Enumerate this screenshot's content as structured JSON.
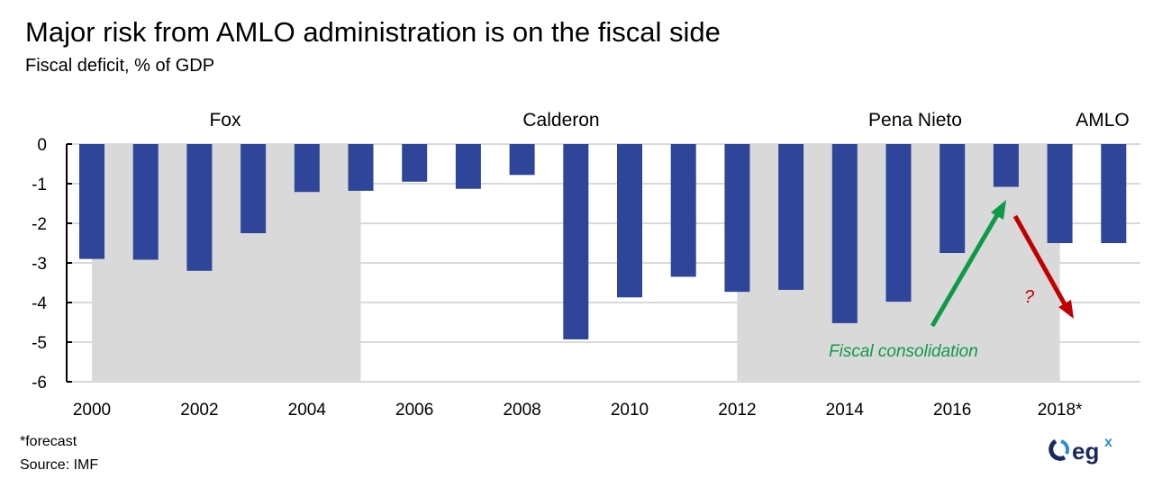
{
  "chart_data": {
    "type": "bar",
    "title": "Major risk from AMLO administration is on the fiscal side",
    "subtitle": "Fiscal deficit, % of GDP",
    "categories": [
      "2000",
      "2001",
      "2002",
      "2003",
      "2004",
      "2005",
      "2006",
      "2007",
      "2008",
      "2009",
      "2010",
      "2011",
      "2012",
      "2013",
      "2014",
      "2015",
      "2016",
      "2017",
      "2018*",
      "2019"
    ],
    "x_tick_labels": [
      "2000",
      "2002",
      "2004",
      "2006",
      "2008",
      "2010",
      "2012",
      "2014",
      "2016",
      "2018*"
    ],
    "values": [
      -2.9,
      -2.92,
      -3.2,
      -2.25,
      -1.21,
      -1.18,
      -0.95,
      -1.13,
      -0.78,
      -4.93,
      -3.87,
      -3.35,
      -3.73,
      -3.68,
      -4.52,
      -3.98,
      -2.75,
      -1.08,
      -2.5,
      -2.5
    ],
    "ylim": [
      -6,
      0
    ],
    "y_ticks": [
      "0",
      "-1",
      "-2",
      "-3",
      "-4",
      "-5",
      "-6"
    ],
    "grid": true,
    "bar_color": "#2E4599",
    "periods": [
      {
        "label": "Fox",
        "from": "2000",
        "to": "2005",
        "shaded": true
      },
      {
        "label": "Calderon",
        "from": "2006",
        "to": "2011",
        "shaded": false
      },
      {
        "label": "Pena Nieto",
        "from": "2012",
        "to": "2018*",
        "shaded": true
      },
      {
        "label": "AMLO",
        "from": "2018*",
        "to": "2019",
        "shaded": false
      }
    ],
    "annotations": [
      {
        "text": "Fiscal consolidation",
        "color": "#0E9A48"
      },
      {
        "text": "?",
        "color": "#C00000"
      }
    ]
  },
  "footnote": "*forecast",
  "source": "Source: IMF",
  "logo": "egx"
}
